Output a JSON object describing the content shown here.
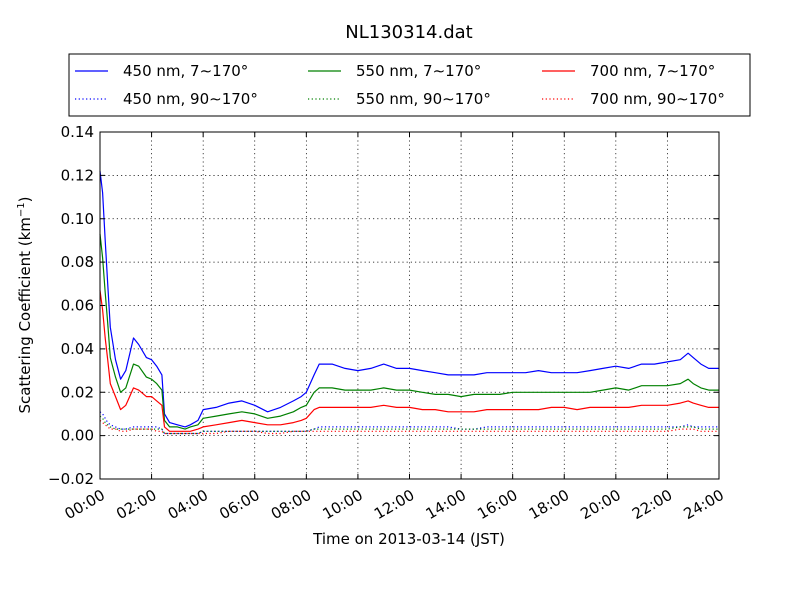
{
  "chart_data": {
    "type": "line",
    "title": "NL130314.dat",
    "xlabel": "Time on 2013-03-14 (JST)",
    "ylabel": "Scattering Coefficient (km",
    "ylabel_sup": "−1",
    "ylabel_end": ")",
    "xlim": [
      0,
      24
    ],
    "ylim": [
      -0.02,
      0.14
    ],
    "grid": true,
    "legend_position": "top",
    "x_ticks": [
      {
        "v": 0,
        "label": "00:00"
      },
      {
        "v": 2,
        "label": "02:00"
      },
      {
        "v": 4,
        "label": "04:00"
      },
      {
        "v": 6,
        "label": "06:00"
      },
      {
        "v": 8,
        "label": "08:00"
      },
      {
        "v": 10,
        "label": "10:00"
      },
      {
        "v": 12,
        "label": "12:00"
      },
      {
        "v": 14,
        "label": "14:00"
      },
      {
        "v": 16,
        "label": "16:00"
      },
      {
        "v": 18,
        "label": "18:00"
      },
      {
        "v": 20,
        "label": "20:00"
      },
      {
        "v": 22,
        "label": "22:00"
      },
      {
        "v": 24,
        "label": "24:00"
      }
    ],
    "y_ticks": [
      {
        "v": -0.02,
        "label": "−0.02"
      },
      {
        "v": 0.0,
        "label": "0.00"
      },
      {
        "v": 0.02,
        "label": "0.02"
      },
      {
        "v": 0.04,
        "label": "0.04"
      },
      {
        "v": 0.06,
        "label": "0.06"
      },
      {
        "v": 0.08,
        "label": "0.08"
      },
      {
        "v": 0.1,
        "label": "0.10"
      },
      {
        "v": 0.12,
        "label": "0.12"
      },
      {
        "v": 0.14,
        "label": "0.14"
      }
    ],
    "x_hours": [
      0,
      0.1,
      0.2,
      0.3,
      0.4,
      0.6,
      0.8,
      1.0,
      1.3,
      1.5,
      1.8,
      2.0,
      2.2,
      2.4,
      2.5,
      2.7,
      3.0,
      3.3,
      3.5,
      3.8,
      4.0,
      4.5,
      5.0,
      5.5,
      6.0,
      6.5,
      7.0,
      7.5,
      7.8,
      8.0,
      8.3,
      8.5,
      9.0,
      9.5,
      10.0,
      10.5,
      11.0,
      11.5,
      12.0,
      12.5,
      13.0,
      13.5,
      14.0,
      14.5,
      15.0,
      15.5,
      16.0,
      16.5,
      17.0,
      17.5,
      18.0,
      18.5,
      19.0,
      19.5,
      20.0,
      20.5,
      21.0,
      21.5,
      22.0,
      22.5,
      22.8,
      23.0,
      23.3,
      23.6,
      24.0
    ],
    "series": [
      {
        "name": "450 nm, 7∼170°",
        "color": "#0000ff",
        "style": "solid",
        "values": [
          0.122,
          0.112,
          0.09,
          0.07,
          0.05,
          0.035,
          0.026,
          0.03,
          0.045,
          0.042,
          0.036,
          0.035,
          0.032,
          0.028,
          0.01,
          0.006,
          0.005,
          0.004,
          0.005,
          0.007,
          0.012,
          0.013,
          0.015,
          0.016,
          0.014,
          0.011,
          0.013,
          0.016,
          0.018,
          0.02,
          0.028,
          0.033,
          0.033,
          0.031,
          0.03,
          0.031,
          0.033,
          0.031,
          0.031,
          0.03,
          0.029,
          0.028,
          0.028,
          0.028,
          0.029,
          0.029,
          0.029,
          0.029,
          0.03,
          0.029,
          0.029,
          0.029,
          0.03,
          0.031,
          0.032,
          0.031,
          0.033,
          0.033,
          0.034,
          0.035,
          0.038,
          0.036,
          0.033,
          0.031,
          0.031
        ]
      },
      {
        "name": "550 nm, 7∼170°",
        "color": "#008000",
        "style": "solid",
        "values": [
          0.093,
          0.082,
          0.066,
          0.052,
          0.036,
          0.027,
          0.02,
          0.022,
          0.033,
          0.032,
          0.027,
          0.026,
          0.024,
          0.021,
          0.007,
          0.004,
          0.004,
          0.003,
          0.004,
          0.005,
          0.008,
          0.009,
          0.01,
          0.011,
          0.01,
          0.008,
          0.009,
          0.011,
          0.013,
          0.014,
          0.02,
          0.022,
          0.022,
          0.021,
          0.021,
          0.021,
          0.022,
          0.021,
          0.021,
          0.02,
          0.019,
          0.019,
          0.018,
          0.019,
          0.019,
          0.019,
          0.02,
          0.02,
          0.02,
          0.02,
          0.02,
          0.02,
          0.02,
          0.021,
          0.022,
          0.021,
          0.023,
          0.023,
          0.023,
          0.024,
          0.026,
          0.024,
          0.022,
          0.021,
          0.021
        ]
      },
      {
        "name": "700 nm, 7∼170°",
        "color": "#ff0000",
        "style": "solid",
        "values": [
          0.067,
          0.058,
          0.045,
          0.035,
          0.024,
          0.018,
          0.012,
          0.014,
          0.022,
          0.021,
          0.018,
          0.018,
          0.016,
          0.014,
          0.004,
          0.002,
          0.002,
          0.002,
          0.002,
          0.003,
          0.004,
          0.005,
          0.006,
          0.007,
          0.006,
          0.005,
          0.005,
          0.006,
          0.007,
          0.008,
          0.012,
          0.013,
          0.013,
          0.013,
          0.013,
          0.013,
          0.014,
          0.013,
          0.013,
          0.012,
          0.012,
          0.011,
          0.011,
          0.011,
          0.012,
          0.012,
          0.012,
          0.012,
          0.012,
          0.013,
          0.013,
          0.012,
          0.013,
          0.013,
          0.013,
          0.013,
          0.014,
          0.014,
          0.014,
          0.015,
          0.016,
          0.015,
          0.014,
          0.013,
          0.013
        ]
      },
      {
        "name": "450 nm, 90∼170°",
        "color": "#0000ff",
        "style": "dotted",
        "values": [
          0.011,
          0.01,
          0.008,
          0.006,
          0.005,
          0.004,
          0.003,
          0.003,
          0.004,
          0.004,
          0.004,
          0.004,
          0.004,
          0.003,
          0.001,
          0.001,
          0.001,
          0.001,
          0.001,
          0.001,
          0.002,
          0.002,
          0.002,
          0.002,
          0.002,
          0.002,
          0.002,
          0.002,
          0.002,
          0.002,
          0.003,
          0.004,
          0.004,
          0.004,
          0.004,
          0.004,
          0.004,
          0.004,
          0.004,
          0.004,
          0.004,
          0.004,
          0.003,
          0.003,
          0.004,
          0.004,
          0.004,
          0.004,
          0.004,
          0.004,
          0.004,
          0.004,
          0.004,
          0.004,
          0.004,
          0.004,
          0.004,
          0.004,
          0.004,
          0.004,
          0.005,
          0.004,
          0.004,
          0.004,
          0.004
        ]
      },
      {
        "name": "550 nm, 90∼170°",
        "color": "#008000",
        "style": "dotted",
        "values": [
          0.009,
          0.008,
          0.006,
          0.005,
          0.004,
          0.003,
          0.003,
          0.003,
          0.003,
          0.003,
          0.003,
          0.003,
          0.003,
          0.003,
          0.001,
          0.001,
          0.001,
          0.001,
          0.001,
          0.001,
          0.002,
          0.002,
          0.002,
          0.002,
          0.002,
          0.002,
          0.002,
          0.002,
          0.002,
          0.002,
          0.003,
          0.003,
          0.003,
          0.003,
          0.003,
          0.003,
          0.003,
          0.003,
          0.003,
          0.003,
          0.003,
          0.003,
          0.003,
          0.003,
          0.003,
          0.003,
          0.003,
          0.003,
          0.003,
          0.003,
          0.003,
          0.003,
          0.003,
          0.003,
          0.003,
          0.003,
          0.003,
          0.003,
          0.003,
          0.004,
          0.004,
          0.004,
          0.003,
          0.003,
          0.003
        ]
      },
      {
        "name": "700 nm, 90∼170°",
        "color": "#ff0000",
        "style": "dotted",
        "values": [
          0.007,
          0.006,
          0.005,
          0.004,
          0.003,
          0.003,
          0.002,
          0.002,
          0.003,
          0.003,
          0.003,
          0.003,
          0.002,
          0.002,
          0.001,
          0.001,
          0.001,
          0.001,
          0.001,
          0.001,
          0.001,
          0.001,
          0.002,
          0.002,
          0.002,
          0.001,
          0.001,
          0.002,
          0.002,
          0.002,
          0.002,
          0.002,
          0.002,
          0.002,
          0.002,
          0.002,
          0.002,
          0.002,
          0.002,
          0.002,
          0.002,
          0.002,
          0.002,
          0.002,
          0.002,
          0.002,
          0.002,
          0.002,
          0.002,
          0.002,
          0.002,
          0.002,
          0.002,
          0.002,
          0.002,
          0.002,
          0.002,
          0.002,
          0.002,
          0.003,
          0.003,
          0.003,
          0.002,
          0.002,
          0.002
        ]
      }
    ]
  }
}
